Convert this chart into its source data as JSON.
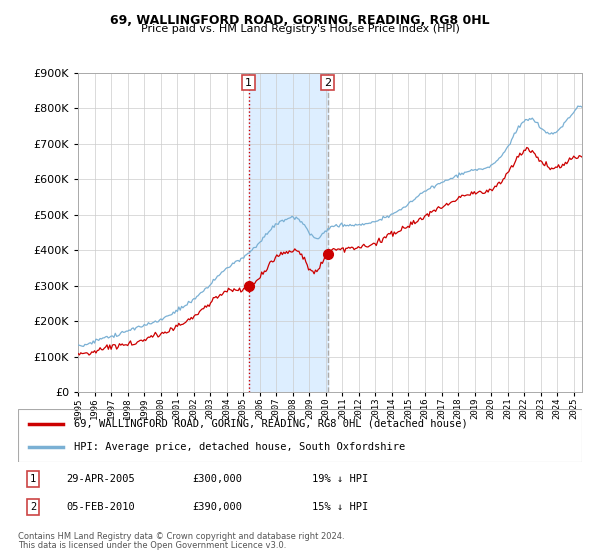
{
  "title": "69, WALLINGFORD ROAD, GORING, READING, RG8 0HL",
  "subtitle": "Price paid vs. HM Land Registry's House Price Index (HPI)",
  "ylim": [
    0,
    900000
  ],
  "xlim_start": 1995.0,
  "xlim_end": 2025.5,
  "legend_line1": "69, WALLINGFORD ROAD, GORING, READING, RG8 0HL (detached house)",
  "legend_line2": "HPI: Average price, detached house, South Oxfordshire",
  "purchase1_date": "29-APR-2005",
  "purchase1_price": "£300,000",
  "purchase1_hpi": "19% ↓ HPI",
  "purchase1_year": 2005.33,
  "purchase1_value": 300000,
  "purchase2_date": "05-FEB-2010",
  "purchase2_price": "£390,000",
  "purchase2_hpi": "15% ↓ HPI",
  "purchase2_year": 2010.1,
  "purchase2_value": 390000,
  "footnote1": "Contains HM Land Registry data © Crown copyright and database right 2024.",
  "footnote2": "This data is licensed under the Open Government Licence v3.0.",
  "line_color_red": "#cc0000",
  "line_color_blue": "#7ab0d4",
  "marker_color_red": "#cc0000",
  "shade_color": "#ddeeff",
  "background_color": "#ffffff",
  "grid_color": "#cccccc"
}
